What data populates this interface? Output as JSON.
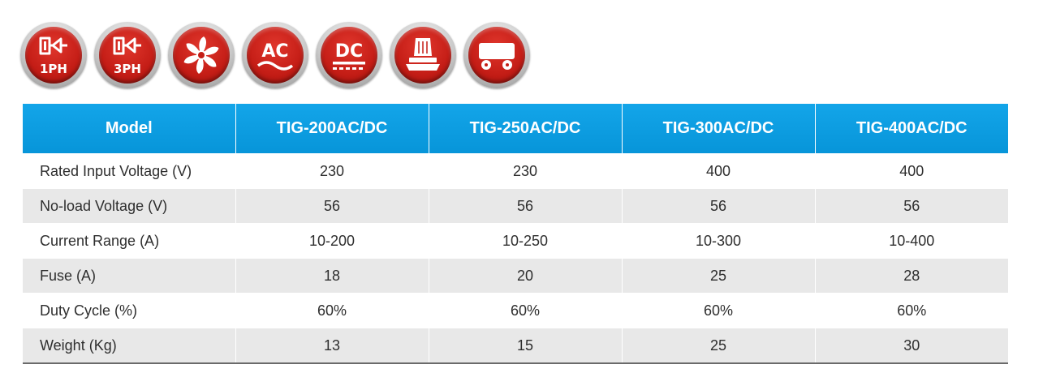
{
  "icons": [
    {
      "name": "single-phase-input-icon",
      "label": "1PH"
    },
    {
      "name": "three-phase-input-icon",
      "label": "3PH"
    },
    {
      "name": "fan-cooling-icon"
    },
    {
      "name": "ac-output-icon",
      "label": "AC"
    },
    {
      "name": "dc-output-icon",
      "label": "DC"
    },
    {
      "name": "foot-pedal-icon"
    },
    {
      "name": "trolley-cart-icon"
    }
  ],
  "colors": {
    "header_blue": "#0a9ee2",
    "badge_red": "#c41d16",
    "row_alt_gray": "#e8e8e8"
  },
  "table": {
    "header": [
      "Model",
      "TIG-200AC/DC",
      "TIG-250AC/DC",
      "TIG-300AC/DC",
      "TIG-400AC/DC"
    ],
    "rows": [
      [
        "Rated Input Voltage (V)",
        "230",
        "230",
        "400",
        "400"
      ],
      [
        "No-load Voltage (V)",
        "56",
        "56",
        "56",
        "56"
      ],
      [
        "Current Range (A)",
        "10-200",
        "10-250",
        "10-300",
        "10-400"
      ],
      [
        "Fuse (A)",
        "18",
        "20",
        "25",
        "28"
      ],
      [
        "Duty Cycle (%)",
        "60%",
        "60%",
        "60%",
        "60%"
      ],
      [
        "Weight (Kg)",
        "13",
        "15",
        "25",
        "30"
      ]
    ]
  }
}
